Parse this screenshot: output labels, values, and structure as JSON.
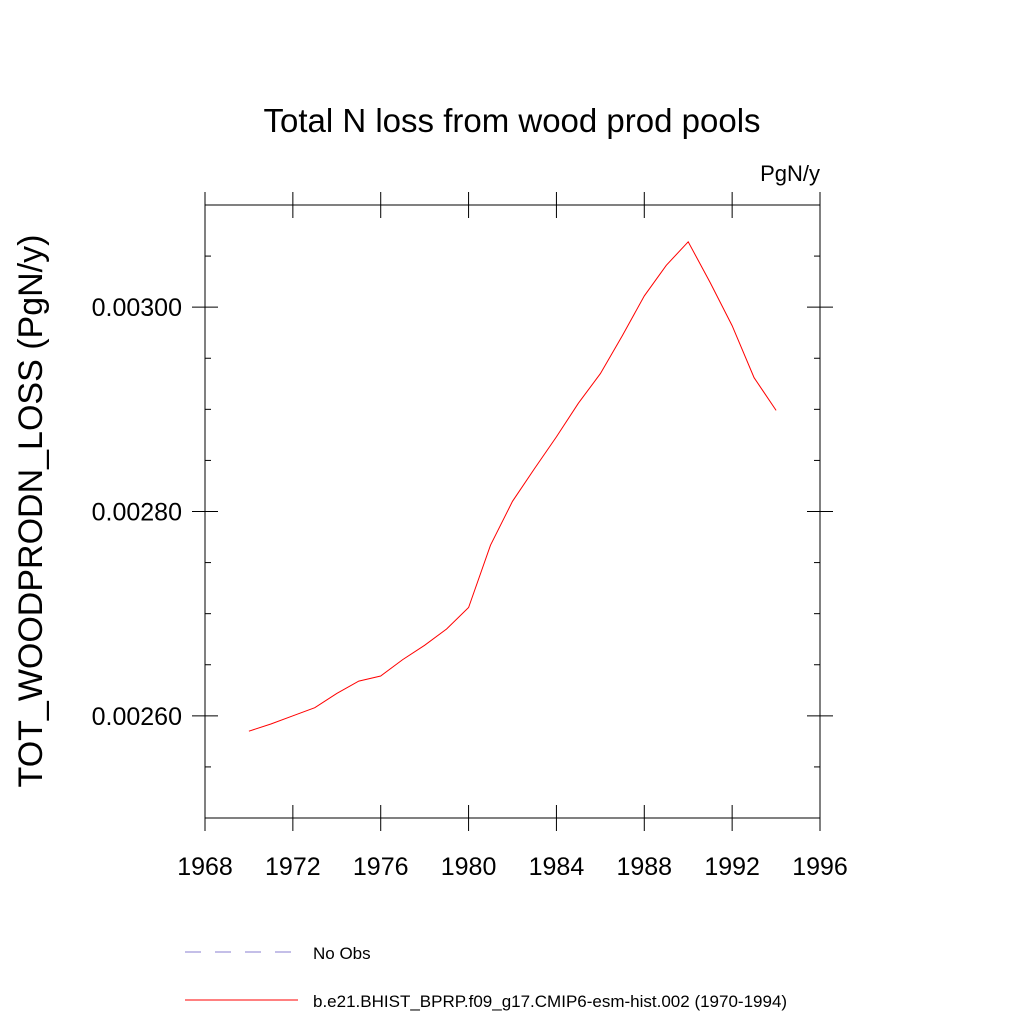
{
  "chart_data": {
    "type": "line",
    "title": "Total N loss from wood prod pools",
    "units_label": "PgN/y",
    "ylabel": "TOT_WOODPRODN_LOSS  (PgN/y)",
    "xlabel": "",
    "xlim": [
      1968,
      1996
    ],
    "ylim": [
      0.0025,
      0.0031
    ],
    "x_major_ticks": [
      1968,
      1972,
      1976,
      1980,
      1984,
      1988,
      1992,
      1996
    ],
    "x_tick_labels": [
      "1968",
      "1972",
      "1976",
      "1980",
      "1984",
      "1988",
      "1992",
      "1996"
    ],
    "y_major_ticks": [
      0.0026,
      0.0028,
      0.003
    ],
    "y_tick_labels": [
      "0.00260",
      "0.00280",
      "0.00300"
    ],
    "y_minor_step": 5e-05,
    "grid": false,
    "legend_position": "bottom",
    "series": [
      {
        "name": "b.e21.BHIST_BPRP.f09_g17.CMIP6-esm-hist.002 (1970-1994)",
        "color": "#ff0000",
        "style": "solid",
        "x": [
          1970,
          1971,
          1972,
          1973,
          1974,
          1975,
          1976,
          1977,
          1978,
          1979,
          1980,
          1981,
          1982,
          1983,
          1984,
          1985,
          1986,
          1987,
          1988,
          1989,
          1990,
          1991,
          1992,
          1993,
          1994
        ],
        "y": [
          0.002585,
          0.002592,
          0.0026,
          0.002608,
          0.002622,
          0.002634,
          0.002639,
          0.002655,
          0.002669,
          0.002685,
          0.002706,
          0.002767,
          0.00281,
          0.002842,
          0.002873,
          0.002906,
          0.002935,
          0.002972,
          0.003011,
          0.003041,
          0.003064,
          0.003024,
          0.002982,
          0.002931,
          0.002899
        ]
      }
    ],
    "legend": [
      {
        "label": "No Obs",
        "color": "#8a7fd0",
        "style": "dashed"
      },
      {
        "label": "b.e21.BHIST_BPRP.f09_g17.CMIP6-esm-hist.002 (1970-1994)",
        "color": "#ff0000",
        "style": "solid"
      }
    ]
  }
}
